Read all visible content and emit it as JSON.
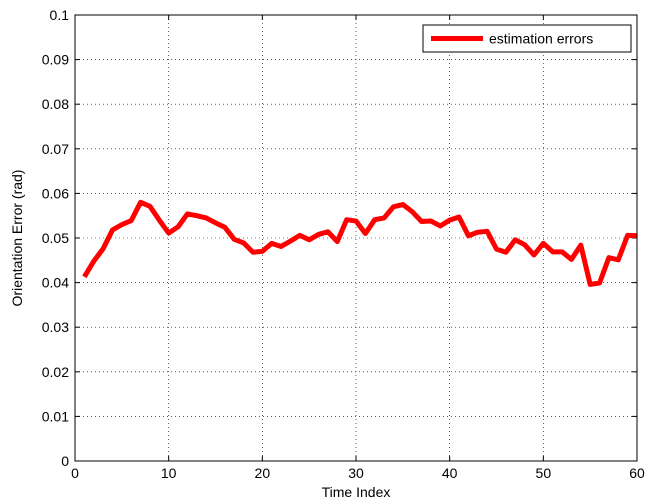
{
  "chart_data": {
    "type": "line",
    "title": "",
    "xlabel": "Time Index",
    "ylabel": "Orientation Error (rad)",
    "xlim": [
      0,
      60
    ],
    "ylim": [
      0,
      0.1
    ],
    "xticks": [
      0,
      10,
      20,
      30,
      40,
      50,
      60
    ],
    "xtick_labels": [
      "0",
      "10",
      "20",
      "30",
      "40",
      "50",
      "60"
    ],
    "yticks": [
      0,
      0.01,
      0.02,
      0.03,
      0.04,
      0.05,
      0.06,
      0.07,
      0.08,
      0.09,
      0.1
    ],
    "ytick_labels": [
      "0",
      "0.01",
      "0.02",
      "0.03",
      "0.04",
      "0.05",
      "0.06",
      "0.07",
      "0.08",
      "0.09",
      "0.1"
    ],
    "grid": true,
    "legend_position": "top-right",
    "series": [
      {
        "name": "estimation errors",
        "color": "#ff0000",
        "x": [
          1,
          2,
          3,
          4,
          5,
          6,
          7,
          8,
          9,
          10,
          11,
          12,
          13,
          14,
          15,
          16,
          17,
          18,
          19,
          20,
          21,
          22,
          23,
          24,
          25,
          26,
          27,
          28,
          29,
          30,
          31,
          32,
          33,
          34,
          35,
          36,
          37,
          38,
          39,
          40,
          41,
          42,
          43,
          44,
          45,
          46,
          47,
          48,
          49,
          50,
          51,
          52,
          53,
          54,
          55,
          56,
          57,
          58,
          59,
          60
        ],
        "y": [
          0.0413,
          0.0448,
          0.0476,
          0.0518,
          0.053,
          0.0539,
          0.058,
          0.0571,
          0.054,
          0.0511,
          0.0525,
          0.0554,
          0.055,
          0.0545,
          0.0534,
          0.0524,
          0.0497,
          0.0489,
          0.0468,
          0.047,
          0.0488,
          0.0481,
          0.0493,
          0.0506,
          0.0496,
          0.0508,
          0.0514,
          0.0492,
          0.0541,
          0.0538,
          0.051,
          0.0541,
          0.0545,
          0.057,
          0.0575,
          0.0559,
          0.0537,
          0.0538,
          0.0527,
          0.054,
          0.0547,
          0.0505,
          0.0513,
          0.0515,
          0.0475,
          0.0468,
          0.0496,
          0.0485,
          0.0462,
          0.0488,
          0.0469,
          0.0469,
          0.0452,
          0.0484,
          0.0396,
          0.0399,
          0.0456,
          0.0451,
          0.0506,
          0.0505
        ]
      }
    ]
  }
}
